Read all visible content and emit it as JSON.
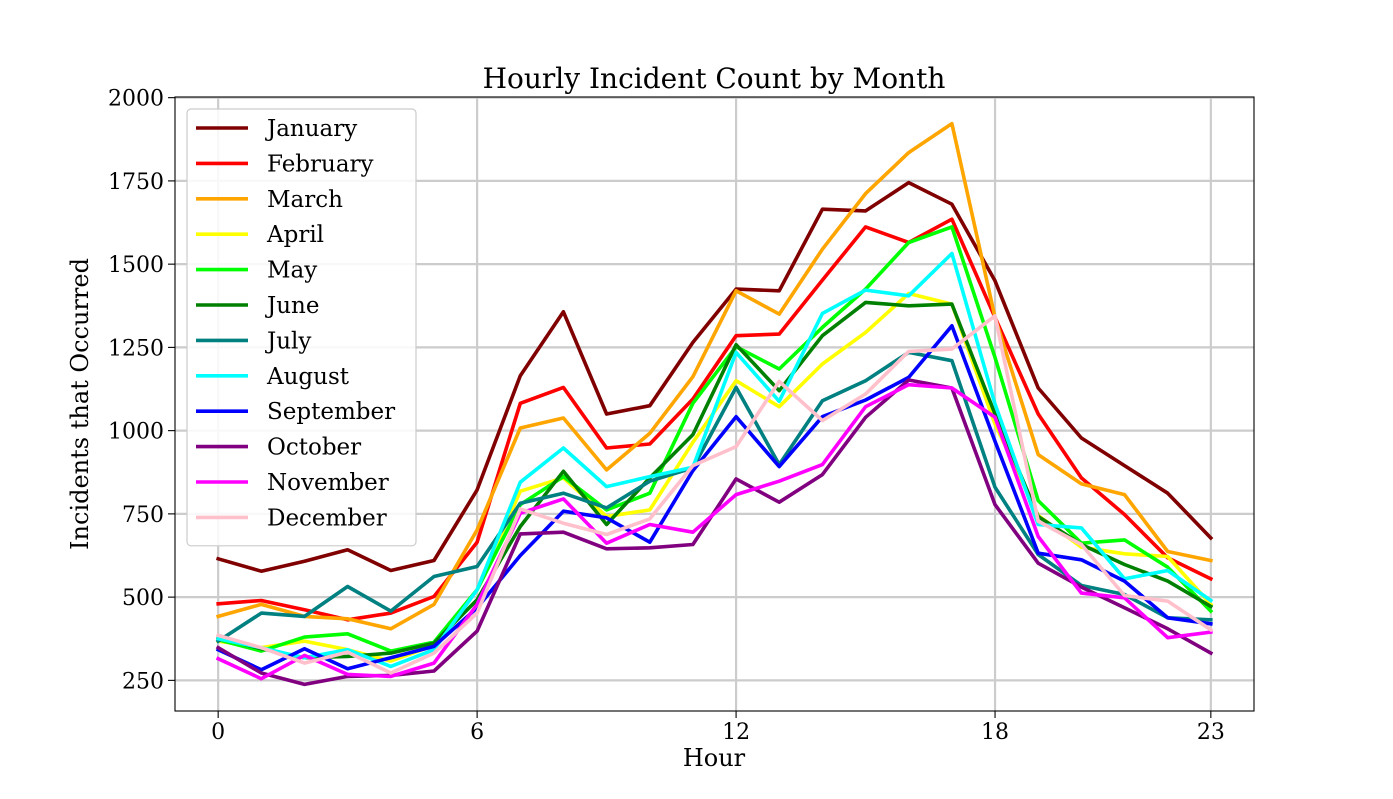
{
  "chart_data": {
    "type": "line",
    "title": "Hourly Incident Count by Month",
    "xlabel": "Hour",
    "ylabel": "Incidents that Occurred",
    "xlim": [
      -1,
      24
    ],
    "ylim": [
      158,
      2002
    ],
    "xticks": [
      0,
      6,
      12,
      18,
      23
    ],
    "yticks": [
      250,
      500,
      750,
      1000,
      1250,
      1500,
      1750,
      2000
    ],
    "grid": true,
    "legend_position": "top-left",
    "x": [
      0,
      1,
      2,
      3,
      4,
      5,
      6,
      7,
      8,
      9,
      10,
      11,
      12,
      13,
      14,
      15,
      16,
      17,
      18,
      19,
      20,
      21,
      22,
      23
    ],
    "series": [
      {
        "name": "January",
        "color": "#800000",
        "values": [
          615,
          578,
          608,
          642,
          580,
          610,
          822,
          1165,
          1357,
          1050,
          1075,
          1265,
          1425,
          1420,
          1665,
          1660,
          1745,
          1680,
          1450,
          1128,
          978,
          895,
          812,
          678
        ]
      },
      {
        "name": "February",
        "color": "#ff0000",
        "values": [
          480,
          490,
          462,
          432,
          452,
          502,
          665,
          1082,
          1130,
          948,
          960,
          1095,
          1285,
          1290,
          1452,
          1612,
          1565,
          1635,
          1340,
          1050,
          858,
          748,
          618,
          555
        ]
      },
      {
        "name": "March",
        "color": "#ffa500",
        "values": [
          442,
          478,
          442,
          435,
          405,
          478,
          702,
          1008,
          1038,
          882,
          992,
          1162,
          1420,
          1350,
          1545,
          1712,
          1835,
          1922,
          1340,
          928,
          840,
          808,
          637,
          610
        ]
      },
      {
        "name": "April",
        "color": "#ffff00",
        "values": [
          368,
          348,
          368,
          342,
          308,
          355,
          522,
          818,
          858,
          742,
          762,
          965,
          1150,
          1072,
          1200,
          1295,
          1412,
          1380,
          1020,
          745,
          650,
          630,
          622,
          478
        ]
      },
      {
        "name": "May",
        "color": "#00ff00",
        "values": [
          372,
          338,
          380,
          390,
          338,
          365,
          522,
          778,
          862,
          762,
          812,
          1082,
          1252,
          1185,
          1310,
          1425,
          1565,
          1612,
          1220,
          790,
          662,
          672,
          590,
          458
        ]
      },
      {
        "name": "June",
        "color": "#008000",
        "values": [
          378,
          345,
          318,
          322,
          332,
          362,
          492,
          712,
          878,
          718,
          858,
          988,
          1258,
          1120,
          1285,
          1385,
          1375,
          1380,
          1050,
          742,
          658,
          598,
          548,
          472
        ]
      },
      {
        "name": "July",
        "color": "#008080",
        "values": [
          368,
          452,
          442,
          532,
          458,
          562,
          592,
          782,
          812,
          768,
          848,
          888,
          1130,
          898,
          1090,
          1150,
          1235,
          1210,
          830,
          628,
          535,
          508,
          438,
          432
        ]
      },
      {
        "name": "August",
        "color": "#00ffff",
        "values": [
          375,
          348,
          318,
          342,
          292,
          342,
          522,
          845,
          948,
          832,
          862,
          890,
          1235,
          1088,
          1352,
          1422,
          1405,
          1532,
          1080,
          718,
          708,
          555,
          580,
          490
        ]
      },
      {
        "name": "September",
        "color": "#0000ff",
        "values": [
          342,
          282,
          345,
          285,
          318,
          352,
          468,
          625,
          758,
          738,
          665,
          880,
          1042,
          892,
          1042,
          1092,
          1160,
          1315,
          968,
          632,
          612,
          548,
          438,
          420
        ]
      },
      {
        "name": "October",
        "color": "#800080",
        "values": [
          348,
          272,
          238,
          262,
          265,
          278,
          398,
          690,
          695,
          645,
          648,
          658,
          855,
          785,
          868,
          1040,
          1152,
          1128,
          778,
          602,
          530,
          468,
          405,
          332
        ]
      },
      {
        "name": "November",
        "color": "#ff00ff",
        "values": [
          315,
          255,
          325,
          268,
          262,
          302,
          478,
          752,
          795,
          662,
          718,
          695,
          808,
          848,
          898,
          1072,
          1138,
          1128,
          1040,
          682,
          512,
          498,
          378,
          395
        ]
      },
      {
        "name": "December",
        "color": "#ffc0cb",
        "values": [
          385,
          348,
          302,
          335,
          272,
          332,
          452,
          765,
          722,
          688,
          735,
          895,
          952,
          1148,
          1030,
          1110,
          1238,
          1245,
          1345,
          728,
          658,
          505,
          488,
          402
        ]
      }
    ]
  }
}
